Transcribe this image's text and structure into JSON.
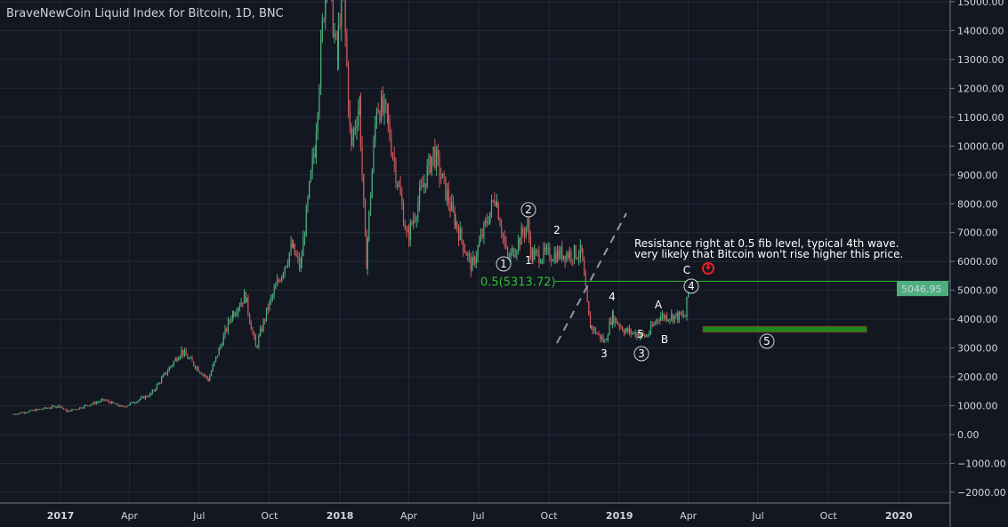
{
  "header": {
    "title": "BraveNewCoin Liquid Index for Bitcoin, 1D, BNC"
  },
  "price_label": {
    "value": "5046.95",
    "color": "#4caf7d"
  },
  "fib": {
    "label": "0.5(5313.72)",
    "level": 5313.72,
    "color": "#2fbf2f"
  },
  "note": {
    "line1": "Resistance right at 0.5 fib level, typical 4th wave.",
    "line2": "very likely that Bitcoin won't rise higher this price."
  },
  "wave_labels": {
    "circled": [
      "1",
      "2",
      "3",
      "4",
      "5"
    ],
    "plain": [
      "1",
      "2",
      "3",
      "4",
      "5",
      "A",
      "B",
      "C"
    ]
  },
  "target_zone": {
    "from": "2019-04-20",
    "to": "2019-11-20",
    "low": 3550,
    "high": 3750,
    "color": "#1e8a1e"
  },
  "chart_data": {
    "type": "line",
    "title": "BraveNewCoin Liquid Index for Bitcoin, 1D, BNC",
    "x_ticks": [
      "2017",
      "Apr",
      "Jul",
      "Oct",
      "2018",
      "Apr",
      "Jul",
      "Oct",
      "2019",
      "Apr",
      "Jul",
      "Oct",
      "2020"
    ],
    "y_ticks": [
      -2000,
      -1000,
      0,
      1000,
      2000,
      3000,
      4000,
      5000,
      6000,
      7000,
      8000,
      9000,
      10000,
      11000,
      12000,
      13000,
      14000,
      15000
    ],
    "ylim": [
      -2300,
      15100
    ],
    "grid": true,
    "series": [
      {
        "points": [
          [
            "2016-11-01",
            700
          ],
          [
            "2017-01-01",
            1000
          ],
          [
            "2017-01-12",
            800
          ],
          [
            "2017-03-01",
            1200
          ],
          [
            "2017-03-25",
            950
          ],
          [
            "2017-05-01",
            1400
          ],
          [
            "2017-06-10",
            2900
          ],
          [
            "2017-07-15",
            1900
          ],
          [
            "2017-08-15",
            4200
          ],
          [
            "2017-09-01",
            4800
          ],
          [
            "2017-09-15",
            3000
          ],
          [
            "2017-10-01",
            4400
          ],
          [
            "2017-11-01",
            6500
          ],
          [
            "2017-11-12",
            5800
          ],
          [
            "2017-12-01",
            10000
          ],
          [
            "2017-12-17",
            16500
          ],
          [
            "2017-12-30",
            13000
          ],
          [
            "2018-01-06",
            16000
          ],
          [
            "2018-01-17",
            10000
          ],
          [
            "2018-01-28",
            11500
          ],
          [
            "2018-02-06",
            6000
          ],
          [
            "2018-02-20",
            11500
          ],
          [
            "2018-03-05",
            11000
          ],
          [
            "2018-04-01",
            6800
          ],
          [
            "2018-05-05",
            9800
          ],
          [
            "2018-06-01",
            7500
          ],
          [
            "2018-06-24",
            5800
          ],
          [
            "2018-07-25",
            8300
          ],
          [
            "2018-08-10",
            6000
          ],
          [
            "2018-09-05",
            7300
          ],
          [
            "2018-09-10",
            6200
          ],
          [
            "2018-11-14",
            6300
          ],
          [
            "2018-11-25",
            3800
          ],
          [
            "2018-12-15",
            3200
          ],
          [
            "2018-12-24",
            4100
          ],
          [
            "2019-01-10",
            3600
          ],
          [
            "2019-02-07",
            3400
          ],
          [
            "2019-02-24",
            4100
          ],
          [
            "2019-03-30",
            4100
          ],
          [
            "2019-04-03",
            5047
          ]
        ]
      }
    ]
  }
}
